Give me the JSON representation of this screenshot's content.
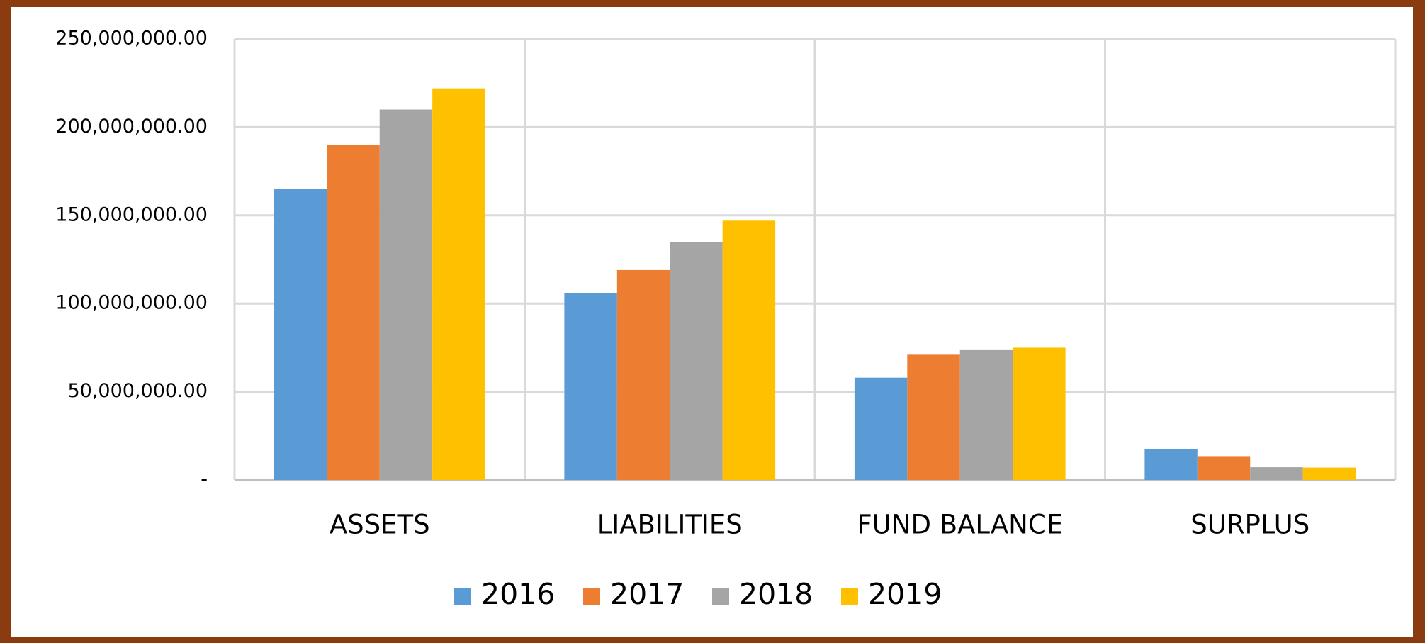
{
  "chart_data": {
    "type": "bar",
    "categories": [
      "ASSETS",
      "LIABILITIES",
      "FUND BALANCE",
      "SURPLUS"
    ],
    "series": [
      {
        "name": "2016",
        "color": "#5b9bd5",
        "values": [
          165000000,
          106000000,
          58000000,
          17500000
        ]
      },
      {
        "name": "2017",
        "color": "#ed7d31",
        "values": [
          190000000,
          119000000,
          71000000,
          13500000
        ]
      },
      {
        "name": "2018",
        "color": "#a5a5a5",
        "values": [
          210000000,
          135000000,
          74000000,
          7200000
        ]
      },
      {
        "name": "2019",
        "color": "#ffc000",
        "values": [
          222000000,
          147000000,
          75000000,
          7000000
        ]
      }
    ],
    "ylim": [
      0,
      250000000
    ],
    "yticks": [
      {
        "value": 0,
        "label": "-"
      },
      {
        "value": 50000000,
        "label": "50,000,000.00"
      },
      {
        "value": 100000000,
        "label": "100,000,000.00"
      },
      {
        "value": 150000000,
        "label": "150,000,000.00"
      },
      {
        "value": 200000000,
        "label": "200,000,000.00"
      },
      {
        "value": 250000000,
        "label": "250,000,000.00"
      }
    ],
    "grid": true,
    "legend": "bottom"
  }
}
